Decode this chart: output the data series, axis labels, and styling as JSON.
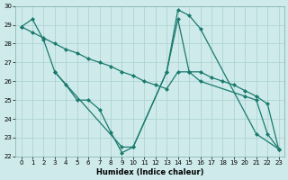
{
  "xlabel": "Humidex (Indice chaleur)",
  "line_color": "#1a7a6e",
  "bg_color": "#ceeaea",
  "grid_color": "#aacfcf",
  "ylim": [
    22,
    30
  ],
  "xlim": [
    -0.5,
    23.5
  ],
  "yticks": [
    22,
    23,
    24,
    25,
    26,
    27,
    28,
    29,
    30
  ],
  "xticks": [
    0,
    1,
    2,
    3,
    4,
    5,
    6,
    7,
    8,
    9,
    10,
    11,
    12,
    13,
    14,
    15,
    16,
    17,
    18,
    19,
    20,
    21,
    22,
    23
  ],
  "s1_x": [
    0,
    1,
    2,
    3,
    9,
    10,
    13,
    14,
    15,
    16,
    21,
    23
  ],
  "s1_y": [
    28.9,
    29.3,
    28.2,
    26.5,
    22.5,
    22.5,
    26.5,
    29.8,
    29.5,
    28.8,
    23.2,
    22.4
  ],
  "s2_x": [
    3,
    4,
    5,
    6,
    7,
    8,
    9,
    10,
    13,
    14,
    15,
    16,
    20,
    21,
    22,
    23
  ],
  "s2_y": [
    26.5,
    25.8,
    25.0,
    25.0,
    24.5,
    23.3,
    22.2,
    22.5,
    26.5,
    29.3,
    26.5,
    26.0,
    25.2,
    25.0,
    23.2,
    22.4
  ],
  "s3_x": [
    0,
    1,
    2,
    3,
    4,
    5,
    6,
    7,
    8,
    9,
    10,
    11,
    12,
    13,
    14,
    15,
    16,
    17,
    18,
    19,
    20,
    21,
    22,
    23
  ],
  "s3_y": [
    28.9,
    28.6,
    28.3,
    28.0,
    27.7,
    27.5,
    27.2,
    27.0,
    26.8,
    26.5,
    26.3,
    26.0,
    25.8,
    25.6,
    26.5,
    26.5,
    26.5,
    26.2,
    26.0,
    25.8,
    25.5,
    25.2,
    24.8,
    22.4
  ]
}
